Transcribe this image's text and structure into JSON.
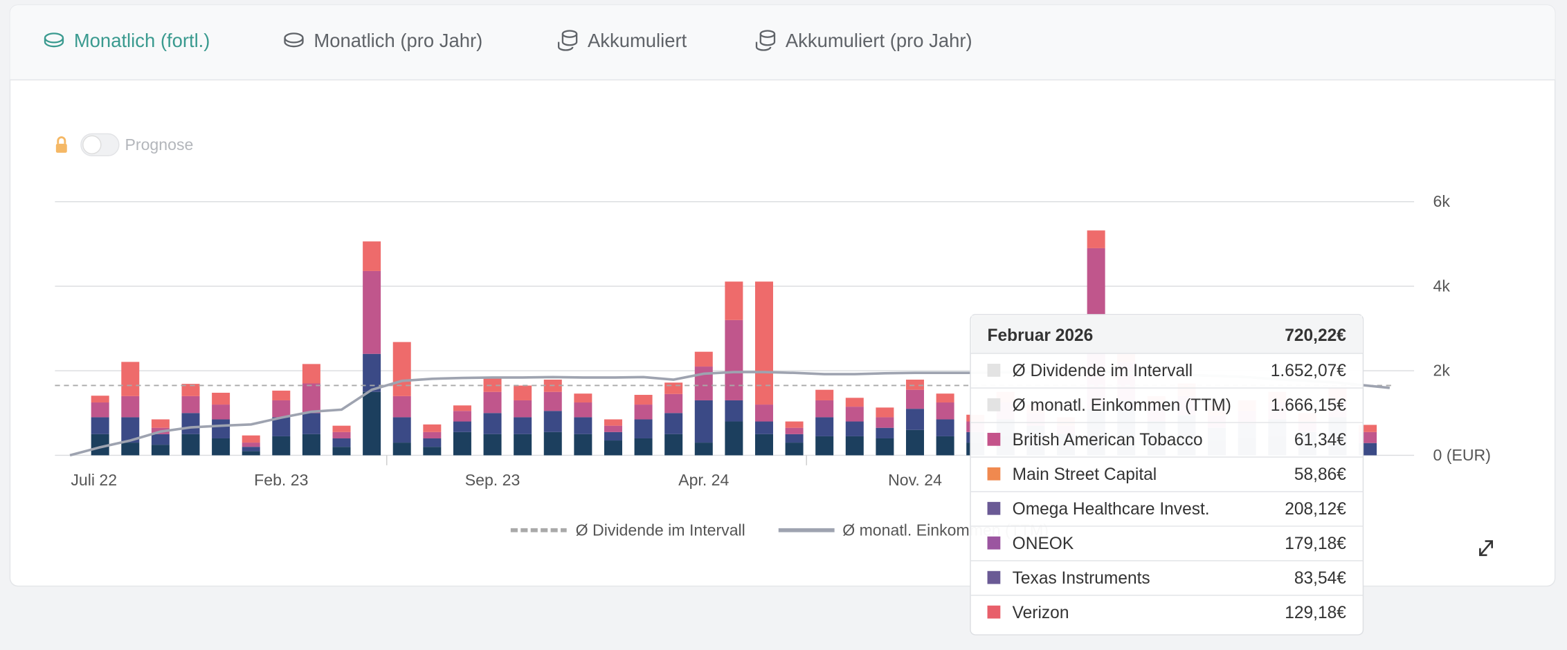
{
  "tabs": [
    "Monatlich (fortl.)",
    "Monatlich (pro Jahr)",
    "Akkumuliert",
    "Akkumuliert (pro Jahr)"
  ],
  "active_tab": 0,
  "toggle_label": "Prognose",
  "chart_data": {
    "type": "bar",
    "stacked": true,
    "categories": [
      "Juli 22",
      null,
      null,
      null,
      null,
      null,
      null,
      "Feb. 23",
      null,
      null,
      null,
      null,
      null,
      null,
      "Sep. 23",
      null,
      null,
      null,
      null,
      null,
      null,
      "Apr. 24",
      null,
      null,
      null,
      null,
      null,
      null,
      "Nov. 24",
      null,
      null,
      null,
      null,
      null,
      null,
      null,
      null,
      null,
      null,
      null,
      null,
      null,
      null,
      null
    ],
    "series": [
      {
        "color": "#1c3f5e",
        "values": [
          0,
          500,
          300,
          250,
          500,
          400,
          100,
          450,
          500,
          200,
          1500,
          300,
          200,
          550,
          500,
          500,
          550,
          500,
          350,
          400,
          500,
          300,
          800,
          500,
          300,
          450,
          450,
          400,
          600,
          450,
          300,
          450,
          400,
          300,
          600,
          600,
          400,
          500,
          350,
          400,
          450,
          300,
          450,
          0
        ]
      },
      {
        "color": "#3b4a86",
        "values": [
          0,
          400,
          600,
          250,
          500,
          450,
          100,
          450,
          500,
          200,
          900,
          600,
          200,
          250,
          500,
          400,
          500,
          400,
          200,
          450,
          500,
          1000,
          500,
          300,
          200,
          450,
          350,
          250,
          500,
          400,
          250,
          400,
          300,
          200,
          500,
          700,
          400,
          450,
          300,
          350,
          400,
          250,
          450,
          290
        ]
      },
      {
        "color": "#c0568c",
        "values": [
          0,
          350,
          500,
          150,
          400,
          350,
          100,
          400,
          700,
          150,
          1960,
          500,
          150,
          250,
          500,
          400,
          450,
          350,
          150,
          350,
          450,
          800,
          1900,
          400,
          150,
          400,
          350,
          250,
          450,
          400,
          250,
          400,
          300,
          200,
          3800,
          900,
          350,
          450,
          300,
          300,
          400,
          250,
          400,
          260
        ]
      },
      {
        "color": "#ee6b6b",
        "values": [
          0,
          160,
          810,
          200,
          290,
          280,
          170,
          230,
          460,
          150,
          700,
          1280,
          180,
          130,
          330,
          350,
          290,
          210,
          150,
          230,
          270,
          350,
          910,
          2910,
          150,
          250,
          210,
          230,
          240,
          210,
          160,
          250,
          200,
          200,
          420,
          580,
          250,
          300,
          250,
          250,
          250,
          200,
          300,
          170
        ]
      }
    ],
    "reference_line": {
      "name": "Ø Dividende im Intervall",
      "value": 1652.07,
      "color": "#a9a9a9"
    },
    "line": {
      "name": "Ø monatl. Einkommen (TTM)",
      "color": "#9ea3b0",
      "values": [
        0,
        190,
        350,
        560,
        660,
        700,
        730,
        890,
        1030,
        1080,
        1550,
        1760,
        1810,
        1830,
        1840,
        1840,
        1850,
        1840,
        1840,
        1850,
        1790,
        1930,
        1970,
        1970,
        1950,
        1920,
        1920,
        1940,
        1950,
        1950,
        1950,
        1960,
        1960,
        1980,
        1980,
        1950,
        1920,
        1900,
        1880,
        1850,
        1800,
        1760,
        1720,
        1666.15
      ]
    },
    "ylim": [
      0,
      6000
    ],
    "yticks": [
      {
        "value": 0,
        "label": "0 (EUR)"
      },
      {
        "value": 2000,
        "label": "2k"
      },
      {
        "value": 4000,
        "label": "4k"
      },
      {
        "value": 6000,
        "label": "6k"
      }
    ],
    "grid": true
  },
  "tooltip": {
    "title": "Februar 2026",
    "total": "720,22€",
    "rows": [
      {
        "label": "Ø Dividende im Intervall",
        "value": "1.652,07€",
        "color": "#e3e3e3"
      },
      {
        "label": "Ø monatl. Einkommen (TTM)",
        "value": "1.666,15€",
        "color": "#e3e3e3"
      },
      {
        "label": "British American Tobacco",
        "value": "61,34€",
        "color": "#c4538a"
      },
      {
        "label": "Main Street Capital",
        "value": "58,86€",
        "color": "#f0894f"
      },
      {
        "label": "Omega Healthcare Invest.",
        "value": "208,12€",
        "color": "#6a5a95"
      },
      {
        "label": "ONEOK",
        "value": "179,18€",
        "color": "#9b55a0"
      },
      {
        "label": "Texas Instruments",
        "value": "83,54€",
        "color": "#6a5a95"
      },
      {
        "label": "Verizon",
        "value": "129,18€",
        "color": "#e85f6a"
      }
    ]
  }
}
